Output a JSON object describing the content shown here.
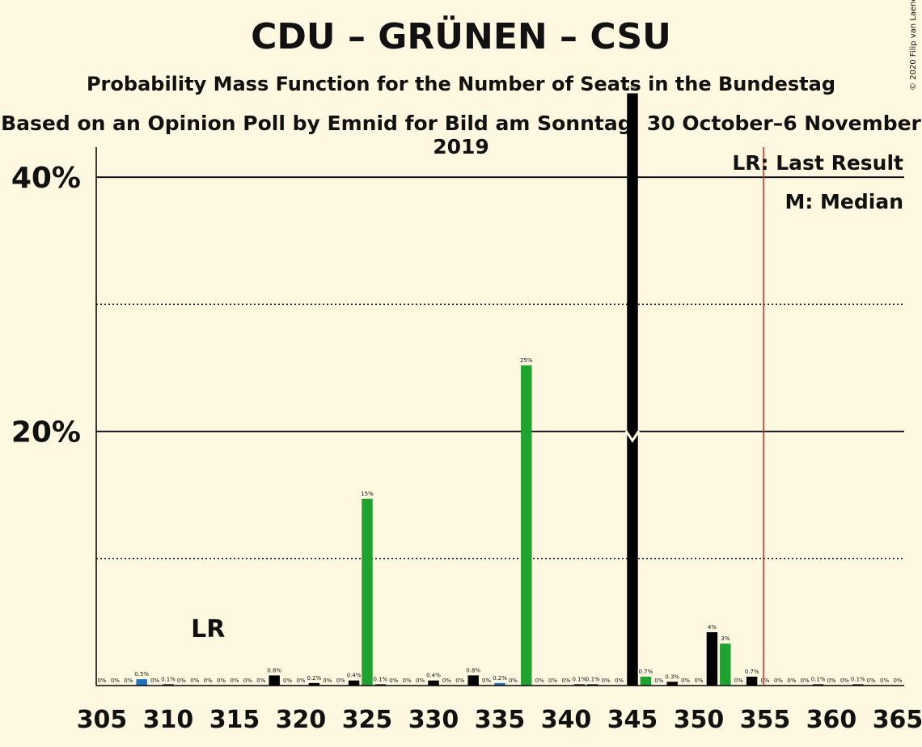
{
  "title": "CDU – GRÜNEN – CSU",
  "subtitle": "Probability Mass Function for the Number of Seats in the Bundestag",
  "subtitle2": "Based on an Opinion Poll by Emnid for Bild am Sonntag, 30 October–6 November 2019",
  "copyright": "© 2020 Filip van Laenen",
  "legend": {
    "lr": "LR: Last Result",
    "m": "M: Median"
  },
  "lr_marker": "LR",
  "colors": {
    "background": "#fff8e1",
    "black": "#000000",
    "green": "#1fa22e",
    "blue": "#1e73be",
    "last_result_line": "#e0221a"
  },
  "chart_data": {
    "type": "bar",
    "xlim": [
      305,
      365
    ],
    "ylim": [
      0,
      50
    ],
    "x_ticks": [
      305,
      310,
      315,
      320,
      325,
      330,
      335,
      340,
      345,
      350,
      355,
      360,
      365
    ],
    "y_ticks_major": [
      20,
      40
    ],
    "y_ticks_minor": [
      10,
      30
    ],
    "y_tick_labels": [
      "20%",
      "40%"
    ],
    "last_result": 355,
    "last_result_label_x": 313,
    "median": 345,
    "bars": [
      {
        "x": 305,
        "value": 0,
        "label": "0%",
        "color": "black"
      },
      {
        "x": 306,
        "value": 0,
        "label": "0%",
        "color": "black"
      },
      {
        "x": 307,
        "value": 0,
        "label": "0%",
        "color": "black"
      },
      {
        "x": 308,
        "value": 0.5,
        "label": "0.5%",
        "color": "blue"
      },
      {
        "x": 309,
        "value": 0,
        "label": "0%",
        "color": "black"
      },
      {
        "x": 310,
        "value": 0.1,
        "label": "0.1%",
        "color": "black"
      },
      {
        "x": 311,
        "value": 0,
        "label": "0%",
        "color": "black"
      },
      {
        "x": 312,
        "value": 0,
        "label": "0%",
        "color": "black"
      },
      {
        "x": 313,
        "value": 0,
        "label": "0%",
        "color": "black"
      },
      {
        "x": 314,
        "value": 0,
        "label": "0%",
        "color": "black"
      },
      {
        "x": 315,
        "value": 0,
        "label": "0%",
        "color": "black"
      },
      {
        "x": 316,
        "value": 0,
        "label": "0%",
        "color": "black"
      },
      {
        "x": 317,
        "value": 0,
        "label": "0%",
        "color": "black"
      },
      {
        "x": 318,
        "value": 0.8,
        "label": "0.8%",
        "color": "black"
      },
      {
        "x": 319,
        "value": 0,
        "label": "0%",
        "color": "black"
      },
      {
        "x": 320,
        "value": 0,
        "label": "0%",
        "color": "black"
      },
      {
        "x": 321,
        "value": 0.2,
        "label": "0.2%",
        "color": "black"
      },
      {
        "x": 322,
        "value": 0,
        "label": "0%",
        "color": "black"
      },
      {
        "x": 323,
        "value": 0,
        "label": "0%",
        "color": "black"
      },
      {
        "x": 324,
        "value": 0.4,
        "label": "0.4%",
        "color": "black"
      },
      {
        "x": 325,
        "value": 14.7,
        "label": "15%",
        "color": "green"
      },
      {
        "x": 326,
        "value": 0.1,
        "label": "0.1%",
        "color": "black"
      },
      {
        "x": 327,
        "value": 0,
        "label": "0%",
        "color": "black"
      },
      {
        "x": 328,
        "value": 0,
        "label": "0%",
        "color": "black"
      },
      {
        "x": 329,
        "value": 0,
        "label": "0%",
        "color": "black"
      },
      {
        "x": 330,
        "value": 0.4,
        "label": "0.4%",
        "color": "black"
      },
      {
        "x": 331,
        "value": 0,
        "label": "0%",
        "color": "black"
      },
      {
        "x": 332,
        "value": 0,
        "label": "0%",
        "color": "black"
      },
      {
        "x": 333,
        "value": 0.8,
        "label": "0.8%",
        "color": "black"
      },
      {
        "x": 334,
        "value": 0,
        "label": "0%",
        "color": "black"
      },
      {
        "x": 335,
        "value": 0.2,
        "label": "0.2%",
        "color": "blue"
      },
      {
        "x": 336,
        "value": 0,
        "label": "0%",
        "color": "black"
      },
      {
        "x": 337,
        "value": 25.2,
        "label": "25%",
        "color": "green"
      },
      {
        "x": 338,
        "value": 0,
        "label": "0%",
        "color": "black"
      },
      {
        "x": 339,
        "value": 0,
        "label": "0%",
        "color": "black"
      },
      {
        "x": 340,
        "value": 0,
        "label": "0%",
        "color": "black"
      },
      {
        "x": 341,
        "value": 0.1,
        "label": "0.1%",
        "color": "black"
      },
      {
        "x": 342,
        "value": 0.1,
        "label": "0.1%",
        "color": "black"
      },
      {
        "x": 343,
        "value": 0,
        "label": "0%",
        "color": "black"
      },
      {
        "x": 344,
        "value": 0,
        "label": "0%",
        "color": "black"
      },
      {
        "x": 345,
        "value": 46.6,
        "label": "47%",
        "color": "black"
      },
      {
        "x": 346,
        "value": 0.7,
        "label": "0.7%",
        "color": "green"
      },
      {
        "x": 347,
        "value": 0,
        "label": "0%",
        "color": "black"
      },
      {
        "x": 348,
        "value": 0.3,
        "label": "0.3%",
        "color": "black"
      },
      {
        "x": 349,
        "value": 0,
        "label": "0%",
        "color": "black"
      },
      {
        "x": 350,
        "value": 0,
        "label": "0%",
        "color": "black"
      },
      {
        "x": 351,
        "value": 4.2,
        "label": "4%",
        "color": "black"
      },
      {
        "x": 352,
        "value": 3.3,
        "label": "3%",
        "color": "green"
      },
      {
        "x": 353,
        "value": 0,
        "label": "0%",
        "color": "black"
      },
      {
        "x": 354,
        "value": 0.7,
        "label": "0.7%",
        "color": "black"
      },
      {
        "x": 355,
        "value": 0,
        "label": "0%",
        "color": "black"
      },
      {
        "x": 356,
        "value": 0,
        "label": "0%",
        "color": "black"
      },
      {
        "x": 357,
        "value": 0,
        "label": "0%",
        "color": "black"
      },
      {
        "x": 358,
        "value": 0,
        "label": "0%",
        "color": "black"
      },
      {
        "x": 359,
        "value": 0.1,
        "label": "0.1%",
        "color": "black"
      },
      {
        "x": 360,
        "value": 0,
        "label": "0%",
        "color": "black"
      },
      {
        "x": 361,
        "value": 0,
        "label": "0%",
        "color": "black"
      },
      {
        "x": 362,
        "value": 0.1,
        "label": "0.1%",
        "color": "black"
      },
      {
        "x": 363,
        "value": 0,
        "label": "0%",
        "color": "black"
      },
      {
        "x": 364,
        "value": 0,
        "label": "0%",
        "color": "black"
      },
      {
        "x": 365,
        "value": 0,
        "label": "0%",
        "color": "black"
      }
    ]
  }
}
